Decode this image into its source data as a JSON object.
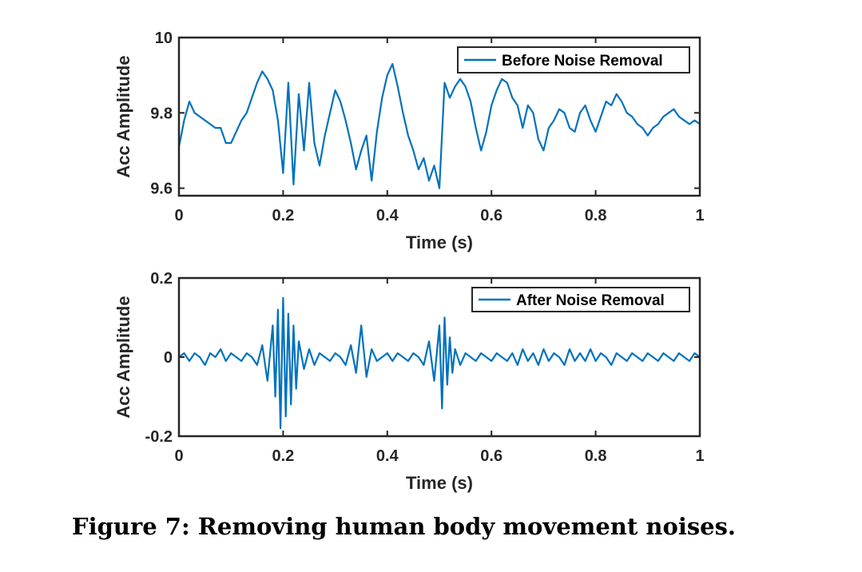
{
  "caption": "Figure 7: Removing human body movement noises.",
  "colors": {
    "line": "#0072bd",
    "axis": "#262626"
  },
  "chart_data": [
    {
      "type": "line",
      "xlabel": "Time (s)",
      "ylabel": "Acc Amplitude",
      "xlim": [
        0,
        1
      ],
      "ylim": [
        9.58,
        10
      ],
      "xticks": [
        0,
        0.2,
        0.4,
        0.6,
        0.8,
        1
      ],
      "xtick_labels": [
        "0",
        "0.2",
        "0.4",
        "0.6",
        "0.8",
        "1"
      ],
      "yticks": [
        9.6,
        9.8,
        10
      ],
      "ytick_labels": [
        "9.6",
        "9.8",
        "10"
      ],
      "grid": false,
      "legend": "top-right",
      "series": [
        {
          "name": "Before Noise Removal",
          "x": [
            0,
            0.01,
            0.02,
            0.03,
            0.04,
            0.05,
            0.06,
            0.07,
            0.08,
            0.09,
            0.1,
            0.11,
            0.12,
            0.13,
            0.14,
            0.15,
            0.16,
            0.17,
            0.18,
            0.19,
            0.2,
            0.21,
            0.22,
            0.23,
            0.24,
            0.25,
            0.26,
            0.27,
            0.28,
            0.29,
            0.3,
            0.31,
            0.32,
            0.33,
            0.34,
            0.35,
            0.36,
            0.37,
            0.38,
            0.39,
            0.4,
            0.41,
            0.42,
            0.43,
            0.44,
            0.45,
            0.46,
            0.47,
            0.48,
            0.49,
            0.5,
            0.51,
            0.52,
            0.53,
            0.54,
            0.55,
            0.56,
            0.57,
            0.58,
            0.59,
            0.6,
            0.61,
            0.62,
            0.63,
            0.64,
            0.65,
            0.66,
            0.67,
            0.68,
            0.69,
            0.7,
            0.71,
            0.72,
            0.73,
            0.74,
            0.75,
            0.76,
            0.77,
            0.78,
            0.79,
            0.8,
            0.81,
            0.82,
            0.83,
            0.84,
            0.85,
            0.86,
            0.87,
            0.88,
            0.89,
            0.9,
            0.91,
            0.92,
            0.93,
            0.94,
            0.95,
            0.96,
            0.97,
            0.98,
            0.99,
            1
          ],
          "values": [
            9.71,
            9.78,
            9.83,
            9.8,
            9.79,
            9.78,
            9.77,
            9.76,
            9.76,
            9.72,
            9.72,
            9.75,
            9.78,
            9.8,
            9.84,
            9.88,
            9.91,
            9.89,
            9.86,
            9.78,
            9.64,
            9.88,
            9.61,
            9.85,
            9.7,
            9.88,
            9.72,
            9.66,
            9.74,
            9.8,
            9.86,
            9.83,
            9.78,
            9.72,
            9.65,
            9.7,
            9.74,
            9.62,
            9.75,
            9.84,
            9.9,
            9.93,
            9.87,
            9.8,
            9.74,
            9.7,
            9.65,
            9.68,
            9.62,
            9.66,
            9.6,
            9.88,
            9.84,
            9.87,
            9.89,
            9.87,
            9.83,
            9.76,
            9.7,
            9.75,
            9.82,
            9.86,
            9.89,
            9.88,
            9.84,
            9.82,
            9.76,
            9.82,
            9.8,
            9.73,
            9.7,
            9.76,
            9.78,
            9.81,
            9.8,
            9.76,
            9.75,
            9.8,
            9.82,
            9.78,
            9.75,
            9.79,
            9.83,
            9.82,
            9.85,
            9.83,
            9.8,
            9.79,
            9.77,
            9.76,
            9.74,
            9.76,
            9.77,
            9.79,
            9.8,
            9.81,
            9.79,
            9.78,
            9.77,
            9.78,
            9.77
          ]
        }
      ]
    },
    {
      "type": "line",
      "xlabel": "Time (s)",
      "ylabel": "Acc Amplitude",
      "xlim": [
        0,
        1
      ],
      "ylim": [
        -0.2,
        0.2
      ],
      "xticks": [
        0,
        0.2,
        0.4,
        0.6,
        0.8,
        1
      ],
      "xtick_labels": [
        "0",
        "0.2",
        "0.4",
        "0.6",
        "0.8",
        "1"
      ],
      "yticks": [
        -0.2,
        0,
        0.2
      ],
      "ytick_labels": [
        "-0.2",
        "0",
        "0.2"
      ],
      "grid": false,
      "legend": "top-right",
      "series": [
        {
          "name": "After Noise Removal",
          "x": [
            0,
            0.01,
            0.02,
            0.03,
            0.04,
            0.05,
            0.06,
            0.07,
            0.08,
            0.09,
            0.1,
            0.11,
            0.12,
            0.13,
            0.14,
            0.15,
            0.16,
            0.17,
            0.18,
            0.185,
            0.19,
            0.195,
            0.2,
            0.205,
            0.21,
            0.215,
            0.22,
            0.225,
            0.23,
            0.24,
            0.25,
            0.26,
            0.27,
            0.28,
            0.29,
            0.3,
            0.31,
            0.32,
            0.33,
            0.34,
            0.35,
            0.36,
            0.37,
            0.38,
            0.39,
            0.4,
            0.41,
            0.42,
            0.43,
            0.44,
            0.45,
            0.46,
            0.47,
            0.48,
            0.49,
            0.5,
            0.505,
            0.51,
            0.515,
            0.52,
            0.525,
            0.53,
            0.54,
            0.55,
            0.56,
            0.57,
            0.58,
            0.59,
            0.6,
            0.61,
            0.62,
            0.63,
            0.64,
            0.65,
            0.66,
            0.67,
            0.68,
            0.69,
            0.7,
            0.71,
            0.72,
            0.73,
            0.74,
            0.75,
            0.76,
            0.77,
            0.78,
            0.79,
            0.8,
            0.81,
            0.82,
            0.83,
            0.84,
            0.85,
            0.86,
            0.87,
            0.88,
            0.89,
            0.9,
            0.91,
            0.92,
            0.93,
            0.94,
            0.95,
            0.96,
            0.97,
            0.98,
            0.99,
            1
          ],
          "values": [
            0.0,
            0.01,
            -0.01,
            0.01,
            0.0,
            -0.02,
            0.01,
            0.0,
            0.02,
            -0.01,
            0.01,
            0.0,
            -0.01,
            0.01,
            0.0,
            -0.02,
            0.03,
            -0.06,
            0.08,
            -0.1,
            0.12,
            -0.18,
            0.15,
            -0.15,
            0.11,
            -0.12,
            0.08,
            -0.08,
            0.04,
            -0.03,
            0.02,
            -0.02,
            0.01,
            0.0,
            -0.01,
            0.01,
            0.0,
            -0.02,
            0.03,
            -0.04,
            0.08,
            -0.05,
            0.02,
            -0.01,
            0.0,
            0.01,
            -0.01,
            0.01,
            0.0,
            -0.01,
            0.01,
            0.0,
            -0.02,
            0.04,
            -0.06,
            0.08,
            -0.13,
            0.1,
            -0.07,
            0.05,
            -0.04,
            0.02,
            -0.02,
            0.01,
            0.0,
            -0.01,
            0.01,
            0.0,
            -0.01,
            0.01,
            0.0,
            -0.01,
            0.01,
            -0.02,
            0.02,
            -0.01,
            0.01,
            -0.02,
            0.02,
            -0.01,
            0.01,
            0.0,
            -0.02,
            0.02,
            -0.01,
            0.01,
            -0.01,
            0.02,
            -0.01,
            0.01,
            0.0,
            -0.02,
            0.01,
            0.0,
            -0.01,
            0.01,
            0.0,
            -0.01,
            0.01,
            0.0,
            -0.01,
            0.01,
            0.0,
            -0.01,
            0.01,
            0.0,
            -0.01,
            0.01,
            0.0
          ]
        }
      ]
    }
  ]
}
